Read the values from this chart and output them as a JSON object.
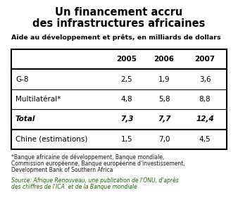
{
  "title_line1": "Un financement accru",
  "title_line2": "des infrastructures africaines",
  "subtitle": "Aide au développement et prêts, en milliards de dollars",
  "columns": [
    "",
    "2005",
    "2006",
    "2007"
  ],
  "rows": [
    {
      "label": "G-8",
      "values": [
        "2,5",
        "1,9",
        "3,6"
      ],
      "bold": false,
      "italic": false
    },
    {
      "label": "Multilatéral*",
      "values": [
        "4,8",
        "5,8",
        "8,8"
      ],
      "bold": false,
      "italic": false
    },
    {
      "label": "Total",
      "values": [
        "7,3",
        "7,7",
        "12,4"
      ],
      "bold": true,
      "italic": true
    },
    {
      "label": "Chine (estimations)",
      "values": [
        "1,5",
        "7,0",
        "4,5"
      ],
      "bold": false,
      "italic": false
    }
  ],
  "footnote1": "*Banque africaine de développement, Banque mondiale,",
  "footnote2": "Commission européenne, Banque européenne d'investissement,",
  "footnote3": "Development Bank of Southern Africa",
  "source_line1": "Source: Afrique Renouveau, une publication de l'ONU, d'après",
  "source_line2": "des chiffres de l'ICA  et de la Banque mondiale",
  "bg_color": "#ffffff",
  "title_color": "#000000",
  "subtitle_color": "#000000",
  "footnote_color": "#1a1a1a",
  "source_color": "#1a6600",
  "title_fontsize": 10.5,
  "subtitle_fontsize": 6.8,
  "table_fontsize": 7.5,
  "footnote_fontsize": 5.5,
  "source_fontsize": 5.5
}
